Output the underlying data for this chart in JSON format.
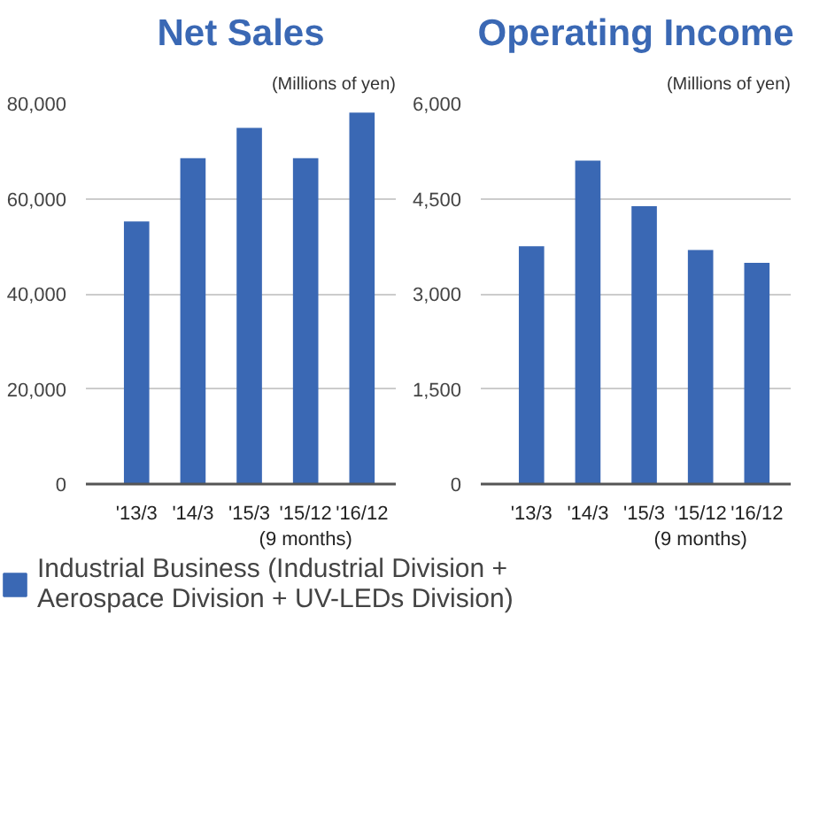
{
  "chart_data": [
    {
      "type": "bar",
      "title": "Net Sales",
      "ylabel": "(Millions of yen)",
      "categories": [
        "'13/3",
        "'14/3",
        "'15/3",
        "'15/12\n(9 months)",
        "'16/12"
      ],
      "series": [
        {
          "name": "Industrial Business (Industrial Division + Aerospace Division + UV-LEDs Division)",
          "color": "#3a68b4",
          "values": [
            55200,
            68500,
            74900,
            68500,
            78100
          ]
        }
      ],
      "ylim": [
        0,
        80000
      ],
      "yticks": [
        {
          "value": 0,
          "label": "0"
        },
        {
          "value": 20000,
          "label": "20,000"
        },
        {
          "value": 40000,
          "label": "40,000"
        },
        {
          "value": 60000,
          "label": "60,000"
        },
        {
          "value": 80000,
          "label": "80,000"
        }
      ],
      "grid": "y",
      "legend": "bottom"
    },
    {
      "type": "bar",
      "title": "Operating Income",
      "ylabel": "(Millions of yen)",
      "categories": [
        "'13/3",
        "'14/3",
        "'15/3",
        "'15/12\n(9 months)",
        "'16/12"
      ],
      "series": [
        {
          "color": "#3a68b4",
          "values": [
            3750,
            5100,
            4380,
            3690,
            3490
          ]
        }
      ],
      "ylim": [
        0,
        6000
      ],
      "yticks": [
        {
          "value": 0,
          "label": "0"
        },
        {
          "value": 1500,
          "label": "1,500"
        },
        {
          "value": 3000,
          "label": "3,000"
        },
        {
          "value": 4500,
          "label": "4,500"
        },
        {
          "value": 6000,
          "label": "6,000"
        }
      ],
      "grid": "y"
    }
  ]
}
